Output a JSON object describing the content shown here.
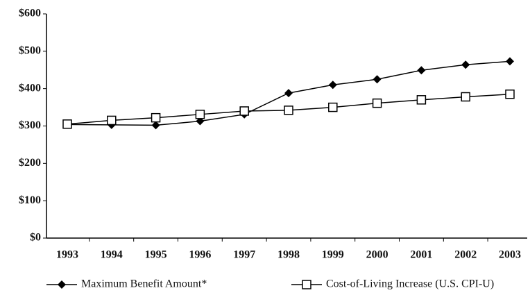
{
  "chart_data": {
    "type": "line",
    "categories": [
      "1993",
      "1994",
      "1995",
      "1996",
      "1997",
      "1998",
      "1999",
      "2000",
      "2001",
      "2002",
      "2003"
    ],
    "series": [
      {
        "name": "Maximum Benefit Amount*",
        "color": "#000000",
        "marker": "diamond",
        "values": [
          304,
          303,
          302,
          313,
          331,
          388,
          410,
          425,
          449,
          464,
          473
        ]
      },
      {
        "name": "Cost-of-Living Increase (U.S. CPI-U)",
        "color": "#000000",
        "marker": "square",
        "values": [
          305,
          315,
          322,
          331,
          340,
          342,
          350,
          361,
          370,
          378,
          385
        ]
      }
    ],
    "ylim": [
      0,
      600
    ],
    "yticks": [
      {
        "value": 0,
        "label": "$0"
      },
      {
        "value": 100,
        "label": "$100"
      },
      {
        "value": 200,
        "label": "$200"
      },
      {
        "value": 300,
        "label": "$300"
      },
      {
        "value": 400,
        "label": "$400"
      },
      {
        "value": 500,
        "label": "$500"
      },
      {
        "value": 600,
        "label": "$600"
      }
    ],
    "legend": "bottom"
  }
}
